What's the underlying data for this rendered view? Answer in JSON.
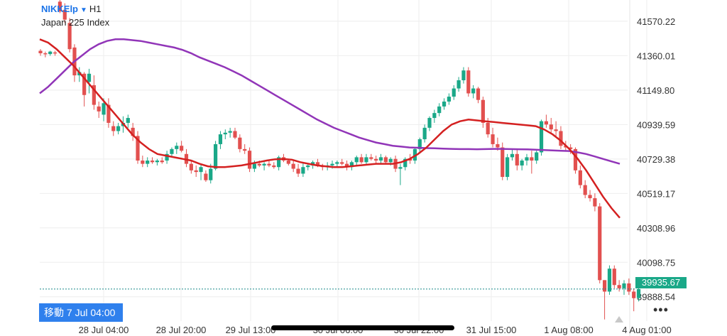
{
  "header": {
    "symbol": "NIKKElp",
    "timeframe": "H1",
    "instrument_name": "Japan 225 Index"
  },
  "goto_button": {
    "label": "移動 7 Jul 04:00"
  },
  "current_price_label": "39935.67",
  "more_icon": "more-horizontal-icon",
  "colors": {
    "bear": "#e2504f",
    "bull": "#1aa888",
    "ma_fast": "#d42020",
    "ma_slow": "#9135b8",
    "grid": "#eeeeee",
    "price_line": "#1a8a8a"
  },
  "chart_data": {
    "type": "candlestick",
    "title": "",
    "y_axis": {
      "position": "right",
      "ticks": [
        "41570.22",
        "41360.01",
        "41149.80",
        "40939.59",
        "40729.38",
        "40519.17",
        "40308.96",
        "40098.75",
        "39888.54"
      ],
      "range": [
        39740,
        41700
      ]
    },
    "x_axis": {
      "tick_labels": [
        "28 Jul 04:00",
        "28 Jul 20:00",
        "29 Jul 13:00",
        "30 Jul 06:00",
        "30 Jul 22:00",
        "31 Jul 15:00",
        "1 Aug 08:00",
        "4 Aug 01:00"
      ]
    },
    "grid": true,
    "current_price": 39935.67,
    "candles": [
      [
        41390,
        41400,
        41360,
        41375
      ],
      [
        41375,
        41385,
        41350,
        41370
      ],
      [
        41370,
        41390,
        41360,
        41385
      ],
      [
        41380,
        41390,
        41360,
        41375
      ],
      [
        41690,
        41720,
        41620,
        41630
      ],
      [
        41640,
        41680,
        41560,
        41580
      ],
      [
        41560,
        41590,
        41380,
        41400
      ],
      [
        41410,
        41430,
        41200,
        41240
      ],
      [
        41240,
        41290,
        41200,
        41260
      ],
      [
        41250,
        41260,
        41050,
        41120
      ],
      [
        41200,
        41280,
        41130,
        41250
      ],
      [
        41180,
        41240,
        41030,
        41060
      ],
      [
        41050,
        41080,
        40980,
        41020
      ],
      [
        41000,
        41100,
        40960,
        41070
      ],
      [
        41060,
        41100,
        40920,
        40950
      ],
      [
        40930,
        40960,
        40870,
        40900
      ],
      [
        40900,
        40950,
        40880,
        40930
      ],
      [
        40930,
        40990,
        40890,
        40950
      ],
      [
        40950,
        41000,
        40920,
        40980
      ],
      [
        40920,
        40950,
        40840,
        40870
      ],
      [
        40870,
        40900,
        40700,
        40720
      ],
      [
        40720,
        40750,
        40680,
        40700
      ],
      [
        40700,
        40740,
        40680,
        40720
      ],
      [
        40720,
        40740,
        40700,
        40710
      ],
      [
        40710,
        40730,
        40690,
        40720
      ],
      [
        40720,
        40740,
        40700,
        40710
      ],
      [
        40720,
        40780,
        40700,
        40760
      ],
      [
        40760,
        40800,
        40740,
        40790
      ],
      [
        40790,
        40830,
        40760,
        40810
      ],
      [
        40810,
        40840,
        40770,
        40780
      ],
      [
        40760,
        40790,
        40680,
        40700
      ],
      [
        40700,
        40720,
        40640,
        40660
      ],
      [
        40660,
        40690,
        40620,
        40650
      ],
      [
        40650,
        40700,
        40600,
        40680
      ],
      [
        40640,
        40660,
        40590,
        40600
      ],
      [
        40600,
        40700,
        40580,
        40670
      ],
      [
        40670,
        40840,
        40660,
        40820
      ],
      [
        40820,
        40900,
        40790,
        40880
      ],
      [
        40880,
        40910,
        40850,
        40890
      ],
      [
        40890,
        40920,
        40860,
        40900
      ],
      [
        40900,
        40920,
        40850,
        40860
      ],
      [
        40860,
        40880,
        40770,
        40790
      ],
      [
        40790,
        40820,
        40760,
        40780
      ],
      [
        40780,
        40800,
        40650,
        40670
      ],
      [
        40670,
        40720,
        40650,
        40700
      ],
      [
        40700,
        40720,
        40680,
        40690
      ],
      [
        40690,
        40710,
        40660,
        40700
      ],
      [
        40700,
        40720,
        40680,
        40690
      ],
      [
        40690,
        40710,
        40670,
        40680
      ],
      [
        40680,
        40750,
        40660,
        40740
      ],
      [
        40740,
        40760,
        40710,
        40720
      ],
      [
        40720,
        40730,
        40690,
        40700
      ],
      [
        40700,
        40720,
        40650,
        40670
      ],
      [
        40670,
        40700,
        40620,
        40640
      ],
      [
        40640,
        40710,
        40620,
        40680
      ],
      [
        40680,
        40700,
        40660,
        40690
      ],
      [
        40690,
        40720,
        40670,
        40710
      ],
      [
        40710,
        40730,
        40680,
        40690
      ],
      [
        40690,
        40700,
        40660,
        40680
      ],
      [
        40680,
        40710,
        40660,
        40690
      ],
      [
        40690,
        40720,
        40670,
        40700
      ],
      [
        40700,
        40720,
        40680,
        40710
      ],
      [
        40710,
        40730,
        40690,
        40700
      ],
      [
        40700,
        40720,
        40660,
        40680
      ],
      [
        40680,
        40720,
        40660,
        40710
      ],
      [
        40710,
        40750,
        40690,
        40740
      ],
      [
        40740,
        40760,
        40700,
        40710
      ],
      [
        40710,
        40760,
        40690,
        40740
      ],
      [
        40740,
        40760,
        40720,
        40730
      ],
      [
        40730,
        40750,
        40700,
        40720
      ],
      [
        40720,
        40760,
        40700,
        40740
      ],
      [
        40740,
        40750,
        40700,
        40710
      ],
      [
        40710,
        40740,
        40690,
        40730
      ],
      [
        40730,
        40750,
        40650,
        40670
      ],
      [
        40670,
        40700,
        40570,
        40680
      ],
      [
        40680,
        40740,
        40660,
        40730
      ],
      [
        40730,
        40760,
        40700,
        40720
      ],
      [
        40720,
        40800,
        40700,
        40790
      ],
      [
        40790,
        40860,
        40770,
        40850
      ],
      [
        40850,
        40940,
        40830,
        40920
      ],
      [
        40920,
        40990,
        40900,
        40980
      ],
      [
        40980,
        41030,
        40950,
        41010
      ],
      [
        41010,
        41070,
        40990,
        41050
      ],
      [
        41050,
        41100,
        41030,
        41080
      ],
      [
        41080,
        41130,
        41060,
        41110
      ],
      [
        41110,
        41180,
        41090,
        41160
      ],
      [
        41160,
        41230,
        41140,
        41210
      ],
      [
        41210,
        41290,
        41190,
        41270
      ],
      [
        41270,
        41290,
        41110,
        41130
      ],
      [
        41130,
        41180,
        41100,
        41160
      ],
      [
        41160,
        41170,
        41070,
        41090
      ],
      [
        41090,
        41110,
        40920,
        40950
      ],
      [
        40950,
        40980,
        40860,
        40880
      ],
      [
        40880,
        40920,
        40800,
        40820
      ],
      [
        40820,
        40860,
        40780,
        40800
      ],
      [
        40800,
        40830,
        40600,
        40620
      ],
      [
        40620,
        40760,
        40600,
        40740
      ],
      [
        40740,
        40790,
        40720,
        40760
      ],
      [
        40760,
        40790,
        40660,
        40690
      ],
      [
        40690,
        40730,
        40660,
        40720
      ],
      [
        40720,
        40760,
        40690,
        40740
      ],
      [
        40740,
        40780,
        40640,
        40720
      ],
      [
        40720,
        40780,
        40700,
        40770
      ],
      [
        40770,
        40970,
        40750,
        40960
      ],
      [
        40960,
        41000,
        40920,
        40940
      ],
      [
        40940,
        40980,
        40890,
        40910
      ],
      [
        40910,
        40960,
        40870,
        40900
      ],
      [
        40900,
        40930,
        40790,
        40810
      ],
      [
        40810,
        40840,
        40780,
        40800
      ],
      [
        40800,
        40820,
        40760,
        40790
      ],
      [
        40790,
        40800,
        40640,
        40660
      ],
      [
        40660,
        40690,
        40550,
        40570
      ],
      [
        40570,
        40600,
        40490,
        40510
      ],
      [
        40510,
        40540,
        40470,
        40490
      ],
      [
        40490,
        40520,
        40410,
        40440
      ],
      [
        40440,
        40460,
        39970,
        39990
      ],
      [
        39990,
        39990,
        39750,
        39920
      ],
      [
        39920,
        40080,
        39900,
        40060
      ],
      [
        40060,
        40080,
        39940,
        39960
      ],
      [
        39960,
        39990,
        39920,
        39940
      ],
      [
        39940,
        39990,
        39900,
        39970
      ],
      [
        39970,
        40000,
        39900,
        39920
      ],
      [
        39920,
        39940,
        39800,
        39880
      ],
      [
        39880,
        39940,
        39860,
        39935.67
      ]
    ],
    "ma_fast": [
      41460,
      41440,
      41400,
      41350,
      41300,
      41240,
      41180,
      41120,
      41060,
      41000,
      40940,
      40880,
      40830,
      40790,
      40760,
      40750,
      40740,
      40730,
      40720,
      40700,
      40685,
      40680,
      40680,
      40685,
      40690,
      40700,
      40710,
      40720,
      40728,
      40730,
      40725,
      40710,
      40700,
      40690,
      40685,
      40680,
      40680,
      40685,
      40690,
      40695,
      40700,
      40700,
      40700,
      40710,
      40730,
      40760,
      40800,
      40850,
      40900,
      40940,
      40960,
      40970,
      40965,
      40960,
      40955,
      40950,
      40945,
      40940,
      40935,
      40930,
      40910,
      40880,
      40840,
      40790,
      40730,
      40660,
      40580,
      40500,
      40430,
      40370
    ],
    "ma_slow": [
      41130,
      41170,
      41220,
      41270,
      41320,
      41360,
      41400,
      41430,
      41450,
      41460,
      41460,
      41455,
      41450,
      41440,
      41430,
      41420,
      41410,
      41395,
      41375,
      41350,
      41330,
      41310,
      41290,
      41265,
      41240,
      41210,
      41180,
      41150,
      41120,
      41090,
      41060,
      41030,
      41000,
      40970,
      40945,
      40920,
      40900,
      40880,
      40860,
      40845,
      40830,
      40820,
      40810,
      40805,
      40800,
      40798,
      40796,
      40795,
      40793,
      40791,
      40790,
      40790,
      40789,
      40790,
      40791,
      40791,
      40790,
      40789,
      40788,
      40786,
      40784,
      40782,
      40780,
      40778,
      40770,
      40760,
      40745,
      40730,
      40715,
      40700
    ]
  }
}
